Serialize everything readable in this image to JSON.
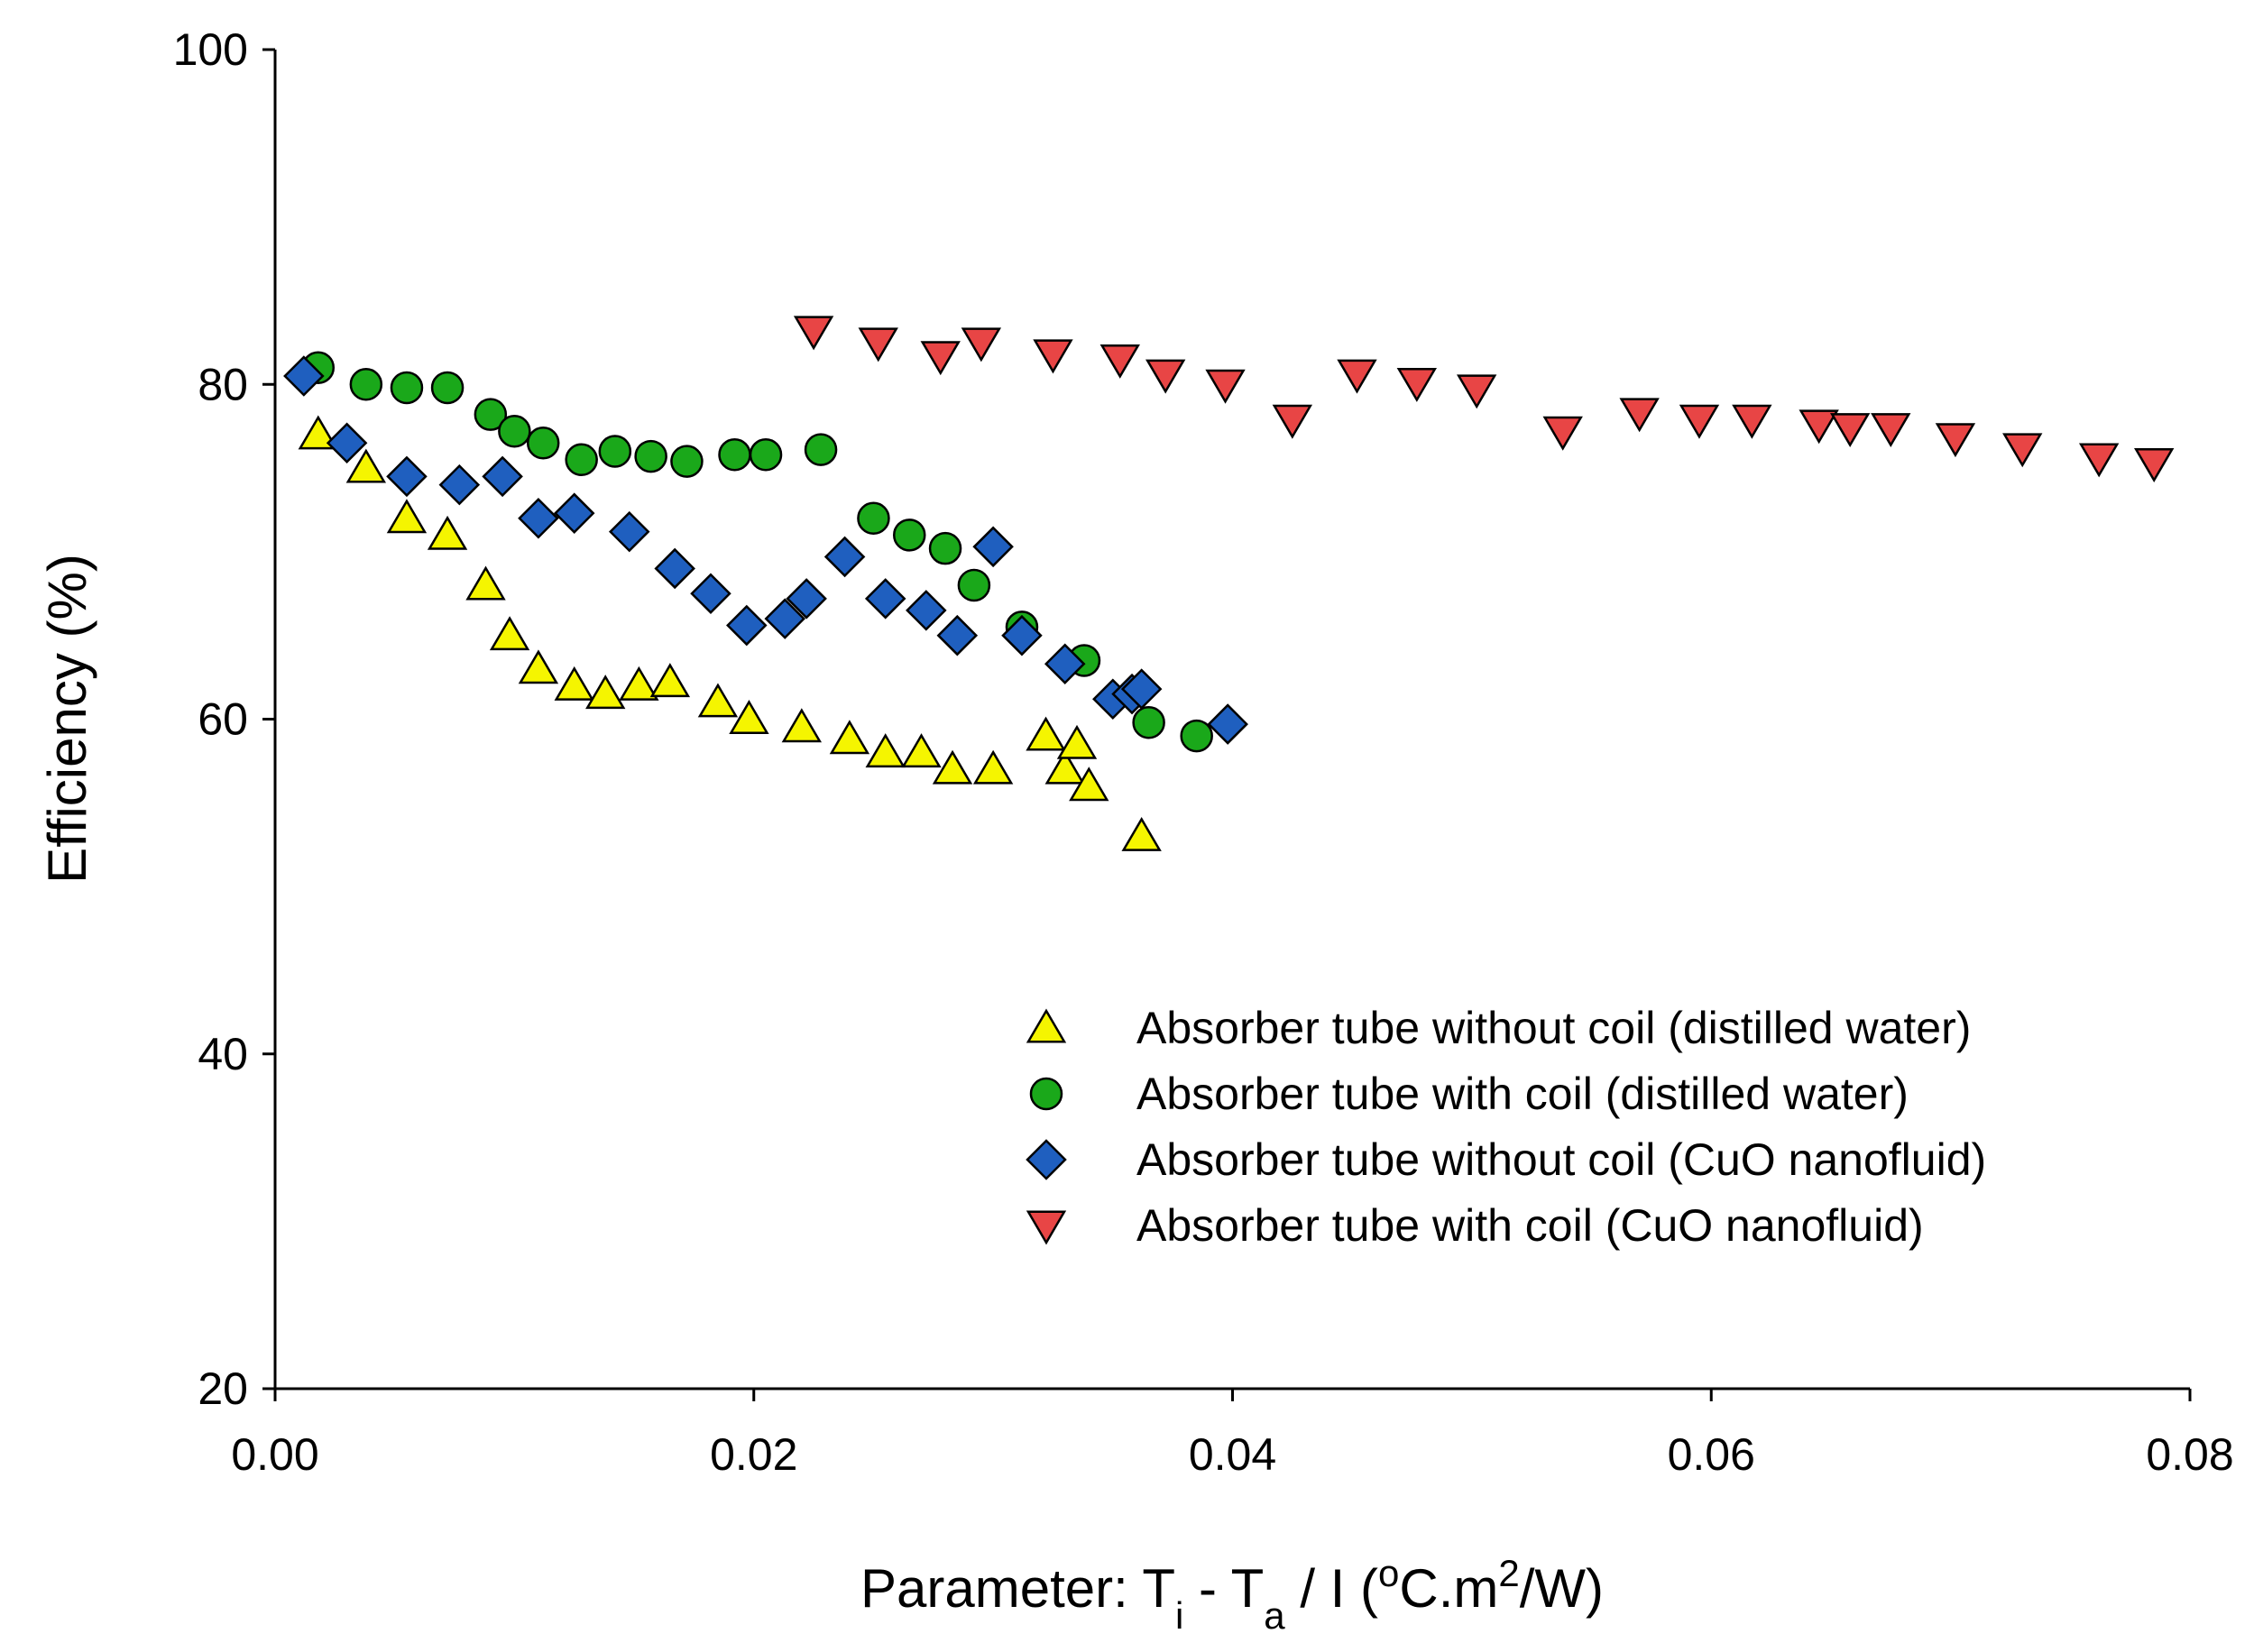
{
  "chart_data": {
    "type": "scatter",
    "title": "",
    "xlabel": "Parameter:  Ti - Ta / I   (oC.m2/W)",
    "xlabel_parts": {
      "prefix": "Parameter:  ",
      "t1": "T",
      "sub1": "i",
      "mid": " - ",
      "t2": "T",
      "sub2": "a",
      "tail": " / I   (",
      "sup1": "o",
      "unit1": "C.m",
      "sup2": "2",
      "unit2": "/W)"
    },
    "ylabel": "Efficiency (%)",
    "xlim": [
      0,
      0.08
    ],
    "ylim": [
      20,
      100
    ],
    "xticks": [
      0.0,
      0.02,
      0.04,
      0.06,
      0.08
    ],
    "xtick_labels": [
      "0.00",
      "0.02",
      "0.04",
      "0.06",
      "0.08"
    ],
    "yticks": [
      20,
      40,
      60,
      80,
      100
    ],
    "ytick_labels": [
      "20",
      "40",
      "60",
      "80",
      "100"
    ],
    "grid": false,
    "legend_position": "lower-right",
    "series": [
      {
        "name": "Absorber tube without coil (distilled water)",
        "marker": "triangle-up",
        "color": "#f5f500",
        "x": [
          0.0018,
          0.0038,
          0.0055,
          0.0072,
          0.0088,
          0.0098,
          0.011,
          0.0125,
          0.0138,
          0.0152,
          0.0165,
          0.0185,
          0.0198,
          0.022,
          0.024,
          0.0255,
          0.027,
          0.0283,
          0.03,
          0.0322,
          0.033,
          0.0335,
          0.034,
          0.0362
        ],
        "y": [
          77.0,
          75.0,
          72.0,
          71.0,
          68.0,
          65.0,
          63.0,
          62.0,
          61.5,
          62.0,
          62.2,
          61.0,
          60.0,
          59.5,
          58.8,
          58.0,
          58.0,
          57.0,
          57.0,
          59.0,
          57.0,
          58.5,
          56.0,
          53.0
        ]
      },
      {
        "name": "Absorber tube with coil (distilled water)",
        "marker": "circle",
        "color": "#1aa81a",
        "x": [
          0.0018,
          0.0038,
          0.0055,
          0.0072,
          0.009,
          0.01,
          0.0112,
          0.0128,
          0.0142,
          0.0157,
          0.0172,
          0.0192,
          0.0205,
          0.0228,
          0.025,
          0.0265,
          0.028,
          0.0292,
          0.0312,
          0.0338,
          0.0365,
          0.0385
        ],
        "y": [
          81.0,
          80.0,
          79.8,
          79.8,
          78.2,
          77.2,
          76.5,
          75.5,
          76.0,
          75.7,
          75.4,
          75.8,
          75.8,
          76.1,
          72.0,
          71.0,
          70.2,
          68.0,
          65.5,
          63.5,
          59.8,
          59.0
        ]
      },
      {
        "name": "Absorber tube without coil (CuO nanofluid)",
        "marker": "diamond",
        "color": "#1f5fbf",
        "x": [
          0.0012,
          0.003,
          0.0055,
          0.0077,
          0.0095,
          0.011,
          0.0125,
          0.0148,
          0.0167,
          0.0182,
          0.0197,
          0.0213,
          0.0222,
          0.0238,
          0.0255,
          0.0272,
          0.0285,
          0.03,
          0.0312,
          0.033,
          0.035,
          0.0358,
          0.0362,
          0.0398
        ],
        "y": [
          80.5,
          76.5,
          74.5,
          74.0,
          74.5,
          72.0,
          72.3,
          71.2,
          69.0,
          67.5,
          65.6,
          66.0,
          67.2,
          69.7,
          67.2,
          66.5,
          65.0,
          70.3,
          65.0,
          63.3,
          61.2,
          61.5,
          61.8,
          59.7
        ]
      },
      {
        "name": "Absorber tube with coil (CuO nanofluid)",
        "marker": "triangle-down",
        "color": "#e84545",
        "x": [
          0.0225,
          0.0252,
          0.0278,
          0.0295,
          0.0325,
          0.0353,
          0.0372,
          0.0397,
          0.0425,
          0.0452,
          0.0477,
          0.0502,
          0.0538,
          0.057,
          0.0595,
          0.0617,
          0.0645,
          0.0658,
          0.0675,
          0.0702,
          0.073,
          0.0762,
          0.0785
        ],
        "y": [
          83.2,
          82.5,
          81.7,
          82.5,
          81.8,
          81.5,
          80.6,
          80.0,
          77.9,
          80.6,
          80.1,
          79.7,
          77.2,
          78.3,
          77.9,
          77.9,
          77.6,
          77.4,
          77.4,
          76.8,
          76.2,
          75.6,
          75.3
        ]
      }
    ]
  }
}
